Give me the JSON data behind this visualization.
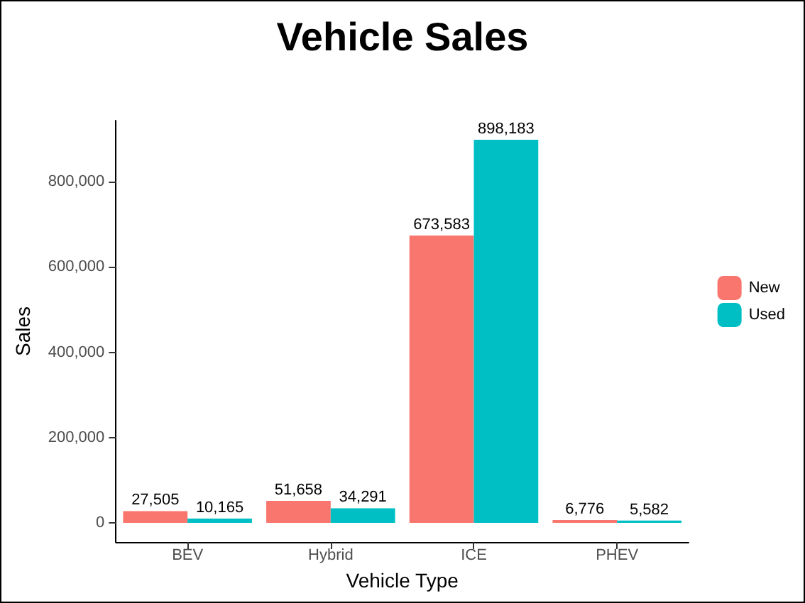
{
  "chart_data": {
    "type": "bar",
    "title": "Vehicle Sales",
    "xlabel": "Vehicle Type",
    "ylabel": "Sales",
    "categories": [
      "BEV",
      "Hybrid",
      "ICE",
      "PHEV"
    ],
    "series": [
      {
        "name": "New",
        "color": "#f8766d",
        "values": [
          27505,
          51658,
          673583,
          6776
        ],
        "value_labels": [
          "27,505",
          "51,658",
          "673,583",
          "6,776"
        ]
      },
      {
        "name": "Used",
        "color": "#00bfc4",
        "values": [
          10165,
          34291,
          898183,
          5582
        ],
        "value_labels": [
          "10,165",
          "34,291",
          "898,183",
          "5,582"
        ]
      }
    ],
    "ylim": [
      -44909,
      943092
    ],
    "yticks": [
      {
        "value": 0,
        "label": "0"
      },
      {
        "value": 200000,
        "label": "200,000"
      },
      {
        "value": 400000,
        "label": "400,000"
      },
      {
        "value": 600000,
        "label": "600,000"
      },
      {
        "value": 800000,
        "label": "800,000"
      }
    ],
    "grid": false,
    "legend": "right"
  }
}
